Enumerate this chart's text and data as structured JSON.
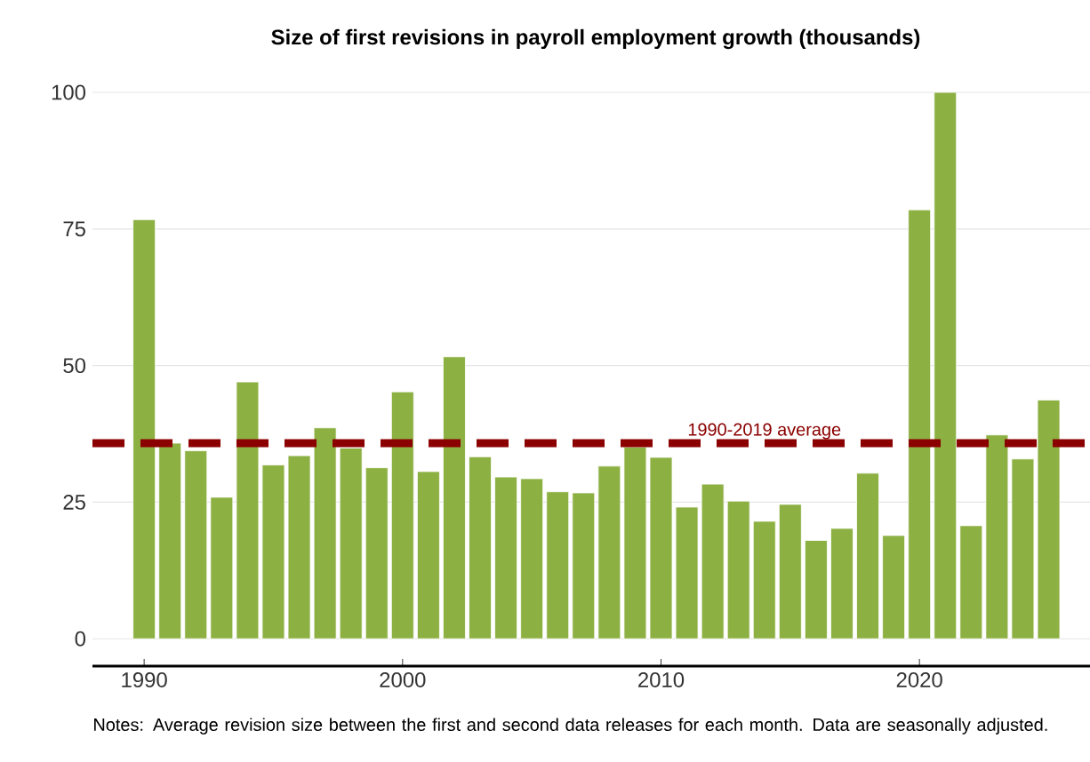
{
  "chart_data": {
    "type": "bar",
    "title": "Size of first revisions in payroll employment growth (thousands)",
    "x": [
      1990,
      1991,
      1992,
      1993,
      1994,
      1995,
      1996,
      1997,
      1998,
      1999,
      2000,
      2001,
      2002,
      2003,
      2004,
      2005,
      2006,
      2007,
      2008,
      2009,
      2010,
      2011,
      2012,
      2013,
      2014,
      2015,
      2016,
      2017,
      2018,
      2019,
      2020,
      2021,
      2022,
      2023,
      2024,
      2025
    ],
    "values": [
      76.7,
      35.8,
      34.4,
      25.9,
      47.0,
      31.8,
      33.5,
      38.6,
      34.9,
      31.3,
      45.2,
      30.6,
      51.6,
      33.3,
      29.6,
      29.3,
      26.9,
      26.7,
      31.6,
      35.1,
      33.2,
      24.1,
      28.3,
      25.2,
      21.5,
      24.6,
      18.0,
      20.2,
      30.3,
      18.9,
      78.5,
      100,
      20.7,
      37.3,
      32.9,
      43.7
    ],
    "color": "#8db043",
    "xlim": [
      1988,
      2026.6
    ],
    "xticks": [
      1990,
      2000,
      2010,
      2020
    ],
    "ylim": [
      -5,
      100
    ],
    "yticks": [
      0,
      25,
      50,
      75,
      100
    ],
    "grid": "y",
    "ref_lines": [
      {
        "axis": "y",
        "value": 35.8,
        "label": "1990-2019 average",
        "color": "#8b0000",
        "line_style": "dashed"
      }
    ],
    "annotations": [
      "Notes: Average revision size between the first and second data releases for each month. Data are seasonally adjusted."
    ]
  }
}
